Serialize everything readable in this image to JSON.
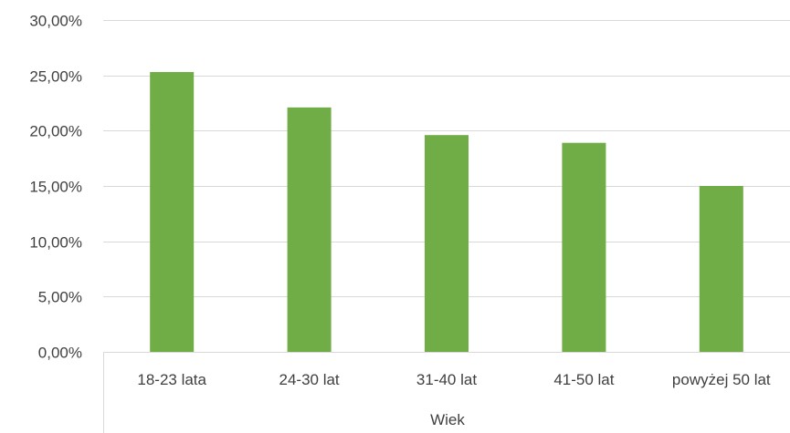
{
  "chart_data": {
    "type": "bar",
    "title": "",
    "xlabel": "Wiek",
    "ylabel": "",
    "categories": [
      "18-23 lata",
      "24-30 lat",
      "31-40 lat",
      "41-50 lat",
      "powyżej 50 lat"
    ],
    "values": [
      25.3,
      22.1,
      19.6,
      18.9,
      15.0
    ],
    "ylim": [
      0,
      30
    ],
    "yticks": [
      0,
      5,
      10,
      15,
      20,
      25,
      30
    ],
    "ytick_labels": [
      "0,00%",
      "5,00%",
      "10,00%",
      "15,00%",
      "20,00%",
      "25,00%",
      "30,00%"
    ],
    "grid": true,
    "legend": "none",
    "colors": {
      "bar": "#70ad47",
      "grid": "#d9d9d9",
      "axis": "#d9d9d9",
      "text": "#404040"
    }
  }
}
